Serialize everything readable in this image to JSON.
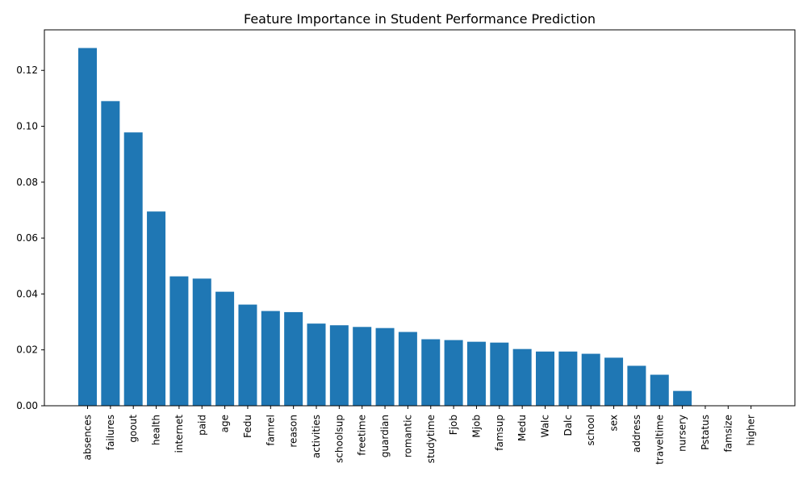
{
  "chart_data": {
    "type": "bar",
    "title": "Feature Importance in Student Performance Prediction",
    "xlabel": "",
    "ylabel": "",
    "categories": [
      "absences",
      "failures",
      "goout",
      "health",
      "internet",
      "paid",
      "age",
      "Fedu",
      "famrel",
      "reason",
      "activities",
      "schoolsup",
      "freetime",
      "guardian",
      "romantic",
      "studytime",
      "Fjob",
      "Mjob",
      "famsup",
      "Medu",
      "Walc",
      "Dalc",
      "school",
      "sex",
      "address",
      "traveltime",
      "nursery",
      "Pstatus",
      "famsize",
      "higher"
    ],
    "values": [
      0.128,
      0.109,
      0.0978,
      0.0695,
      0.0463,
      0.0455,
      0.0408,
      0.0362,
      0.0339,
      0.0335,
      0.0294,
      0.0288,
      0.0282,
      0.0278,
      0.0264,
      0.0238,
      0.0235,
      0.0229,
      0.0226,
      0.0203,
      0.0194,
      0.0194,
      0.0186,
      0.0172,
      0.0143,
      0.0111,
      0.0053,
      0,
      0,
      0
    ],
    "yticks": [
      "0.00",
      "0.02",
      "0.04",
      "0.06",
      "0.08",
      "0.10",
      "0.12"
    ],
    "ylim": [
      0,
      0.1345
    ],
    "grid": false,
    "bar_color": "#1f77b4"
  }
}
